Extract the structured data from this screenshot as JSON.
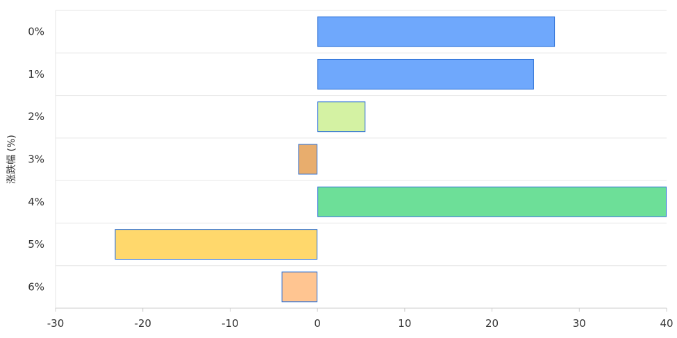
{
  "chart_data": {
    "type": "bar",
    "orientation": "horizontal",
    "categories": [
      "0%",
      "1%",
      "2%",
      "3%",
      "4%",
      "5%",
      "6%"
    ],
    "values": [
      27.2,
      24.8,
      5.5,
      -2.2,
      40,
      -23.2,
      -4.1
    ],
    "bar_colors": [
      "#6fa8fc",
      "#6fa8fc",
      "#d4f2a3",
      "#e8ad6d",
      "#6ddf98",
      "#ffd86c",
      "#ffc591"
    ],
    "bar_border_color": "#2a6fd6",
    "ylabel": "涨跌幅 (%)",
    "xlabel": "",
    "xlim": [
      -30,
      40
    ],
    "xticks": [
      "-30",
      "-20",
      "-10",
      "0",
      "10",
      "20",
      "30",
      "40"
    ],
    "grid": true,
    "legend": "none"
  }
}
